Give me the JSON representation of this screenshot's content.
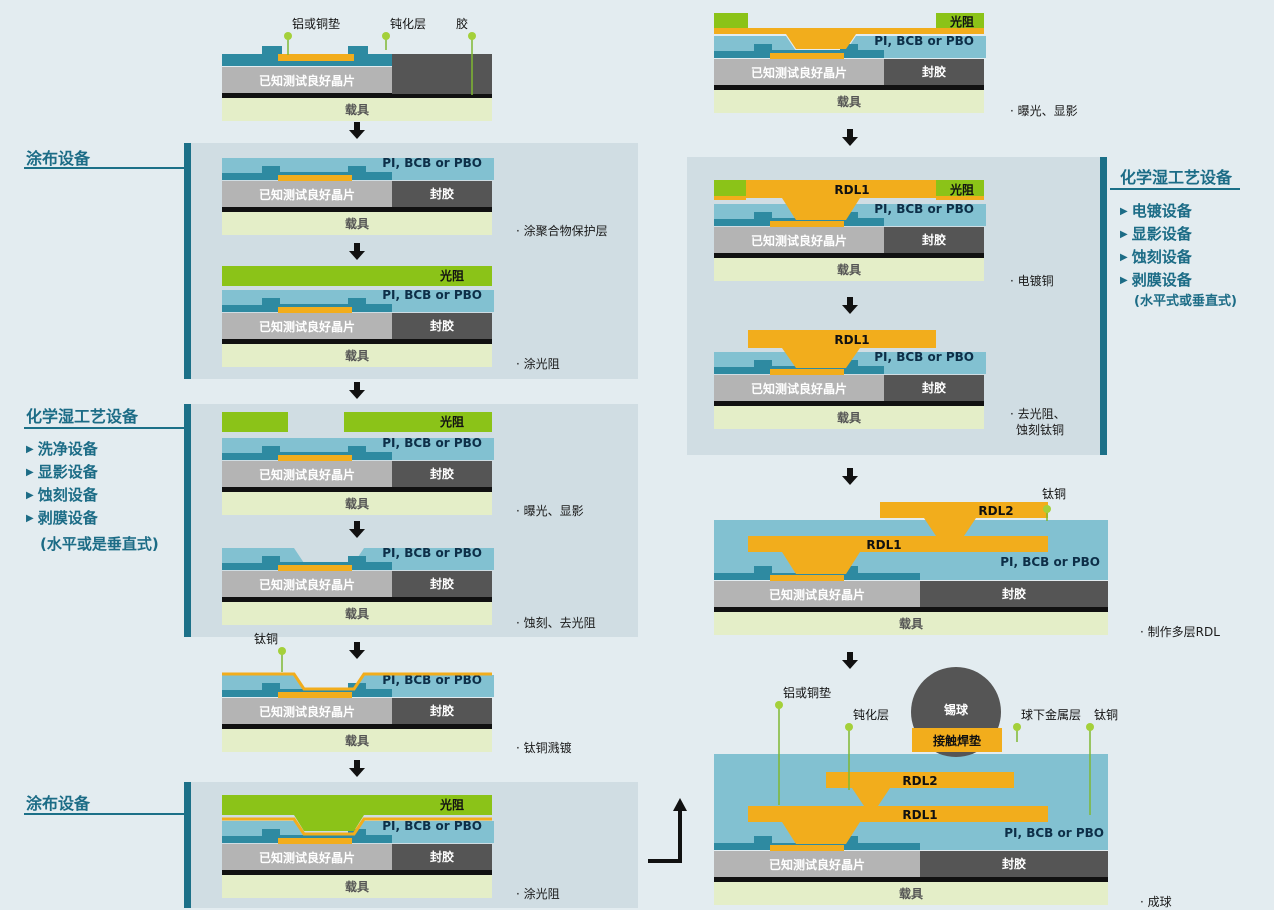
{
  "labels": {
    "al_cu_pad": "铝或铜垫",
    "passivation": "钝化层",
    "glue": "胶",
    "die": "已知测试良好晶片",
    "mold": "封胶",
    "carrier": "载具",
    "dielectric": "PI, BCB or PBO",
    "photoresist": "光阻",
    "ti_cu": "钛铜",
    "rdl1": "RDL1",
    "rdl2": "RDL2",
    "solder_ball": "锡球",
    "ubm": "球下金属层",
    "contact_pad": "接触焊垫"
  },
  "sections": {
    "coat1": {
      "title": "涂布设备"
    },
    "wet1": {
      "title": "化学湿工艺设备",
      "items": [
        "洗净设备",
        "显影设备",
        "蚀刻设备",
        "剥膜设备"
      ],
      "note": "(水平或是垂直式)"
    },
    "coat2": {
      "title": "涂布设备"
    },
    "wet2": {
      "title": "化学湿工艺设备",
      "items": [
        "电镀设备",
        "显影设备",
        "蚀刻设备",
        "剥膜设备"
      ],
      "note": "(水平式或垂直式)"
    }
  },
  "steps": [
    "涂聚合物保护层",
    "涂光阻",
    "曝光、显影",
    "蚀刻、去光阻",
    "钛铜溅镀",
    "涂光阻",
    "曝光、显影",
    "电镀铜",
    "去光阻、",
    "蚀刻钛铜",
    "制作多层RDL",
    "成球"
  ],
  "colors": {
    "teal": "#2e8aa1",
    "light_teal": "#82c1d1",
    "die": "#b4b4b4",
    "mold": "#555555",
    "carrier": "#e4eec8",
    "gold": "#f2ad1c",
    "green": "#8bc318",
    "accent": "#1c7088"
  }
}
